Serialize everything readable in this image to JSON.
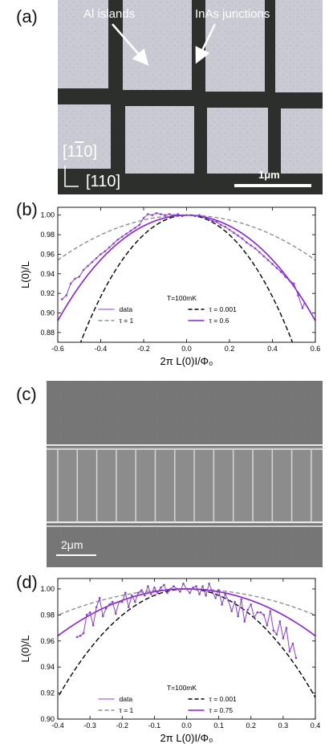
{
  "panels": {
    "a": {
      "label": "(a)",
      "annotation_left": "Al islands",
      "annotation_right": "InAs junctions",
      "axis_top": "[1̄ 1̄ 0]",
      "axis_bottom": "[110]",
      "scale_bar": "1μm",
      "colors": {
        "background": "#3e3e3e",
        "island": "#c9cad3",
        "stripe": "#2c2f2c"
      }
    },
    "b": {
      "label": "(b)"
    },
    "c": {
      "label": "(c)",
      "scale_bar": "2μm",
      "colors": {
        "background": "#6f6f6f",
        "band": "#8c8c8c",
        "line": "#e9e9e9"
      }
    },
    "d": {
      "label": "(d)"
    }
  },
  "chart_data": [
    {
      "id": "b",
      "type": "line",
      "xlabel": "2π L(0)I/Φ₀",
      "ylabel": "L(0)/L",
      "xlim": [
        -0.6,
        0.6
      ],
      "ylim": [
        0.87,
        1.008
      ],
      "xticks": [
        "-0.6",
        "-0.4",
        "-0.2",
        "0.0",
        "0.2",
        "0.4",
        "0.6"
      ],
      "yticks": [
        "0.88",
        "0.90",
        "0.92",
        "0.94",
        "0.96",
        "0.98",
        "1.00"
      ],
      "annotation": "T=100mK",
      "legend": [
        "data",
        "τ = 0.001",
        "τ = 1",
        "τ = 0.6"
      ],
      "series": [
        {
          "name": "data",
          "style": "data",
          "color": "#8b3fd1",
          "x": [
            -0.58,
            -0.56,
            -0.54,
            -0.52,
            -0.5,
            -0.48,
            -0.46,
            -0.44,
            -0.42,
            -0.4,
            -0.38,
            -0.36,
            -0.34,
            -0.32,
            -0.3,
            -0.28,
            -0.26,
            -0.24,
            -0.22,
            -0.2,
            -0.18,
            -0.16,
            -0.14,
            -0.12,
            -0.1,
            -0.08,
            -0.06,
            -0.04,
            -0.02,
            0.0,
            0.02,
            0.04,
            0.06,
            0.08,
            0.1,
            0.12,
            0.14,
            0.16,
            0.18,
            0.2,
            0.22,
            0.24,
            0.26,
            0.28,
            0.3,
            0.32,
            0.34,
            0.36,
            0.38,
            0.4,
            0.42,
            0.44,
            0.46,
            0.48,
            0.5,
            0.52,
            0.54,
            0.55
          ],
          "y": [
            0.914,
            0.918,
            0.93,
            0.935,
            0.937,
            0.944,
            0.948,
            0.952,
            0.956,
            0.96,
            0.963,
            0.967,
            0.971,
            0.975,
            0.978,
            0.981,
            0.984,
            0.987,
            0.99,
            0.997,
            1.001,
            1.0,
            1.002,
            1.001,
            1.0,
            1.001,
            1.0,
            1.001,
            0.999,
            1.0,
            1.0,
            0.999,
            1.0,
            0.998,
            0.996,
            0.994,
            0.993,
            0.99,
            0.988,
            0.985,
            0.982,
            0.979,
            0.976,
            0.972,
            0.969,
            0.966,
            0.962,
            0.958,
            0.954,
            0.95,
            0.946,
            0.942,
            0.937,
            0.933,
            0.93,
            0.918,
            0.905,
            0.91
          ]
        },
        {
          "name": "τ = 0.001",
          "style": "dash-black",
          "color": "#000000",
          "tau": 0.001
        },
        {
          "name": "τ = 1",
          "style": "dash-gray",
          "color": "#8f8f8f",
          "tau": 1
        },
        {
          "name": "τ = 0.6",
          "style": "solid",
          "color": "#8b1fd6",
          "tau": 0.6
        }
      ]
    },
    {
      "id": "d",
      "type": "line",
      "xlabel": "2π L(0)I/Φ₀",
      "ylabel": "L(0)/L",
      "xlim": [
        -0.4,
        0.4
      ],
      "ylim": [
        0.9,
        1.008
      ],
      "xticks": [
        "-0.4",
        "-0.3",
        "-0.2",
        "-0.1",
        "0.0",
        "0.1",
        "0.2",
        "0.3",
        "0.4"
      ],
      "yticks": [
        "0.90",
        "0.92",
        "0.94",
        "0.96",
        "0.98",
        "1.00"
      ],
      "annotation": "T=100mK",
      "legend": [
        "data",
        "τ = 0.001",
        "τ = 1",
        "τ = 0.75"
      ],
      "series": [
        {
          "name": "data",
          "style": "data",
          "color": "#8b3fd1",
          "x": [
            -0.34,
            -0.33,
            -0.32,
            -0.31,
            -0.3,
            -0.29,
            -0.28,
            -0.27,
            -0.26,
            -0.25,
            -0.24,
            -0.23,
            -0.22,
            -0.21,
            -0.2,
            -0.19,
            -0.18,
            -0.17,
            -0.16,
            -0.15,
            -0.14,
            -0.13,
            -0.12,
            -0.11,
            -0.1,
            -0.09,
            -0.08,
            -0.07,
            -0.06,
            -0.05,
            -0.04,
            -0.03,
            -0.02,
            -0.01,
            0.0,
            0.01,
            0.02,
            0.03,
            0.04,
            0.05,
            0.06,
            0.07,
            0.08,
            0.09,
            0.1,
            0.11,
            0.12,
            0.13,
            0.14,
            0.15,
            0.16,
            0.17,
            0.18,
            0.19,
            0.2,
            0.21,
            0.22,
            0.23,
            0.24,
            0.25,
            0.26,
            0.27,
            0.28,
            0.29,
            0.3,
            0.31,
            0.32,
            0.33,
            0.34
          ],
          "y": [
            0.963,
            0.964,
            0.966,
            0.98,
            0.982,
            0.972,
            0.986,
            0.993,
            0.979,
            0.985,
            0.988,
            0.99,
            0.981,
            0.99,
            0.99,
            0.997,
            0.986,
            0.995,
            0.99,
            0.997,
            0.999,
            0.995,
            1.002,
            0.996,
            1.001,
            0.997,
            1.001,
            1.003,
            0.997,
            1.0,
            1.002,
            1.0,
            0.998,
            1.004,
            1.0,
            0.997,
            1.001,
            1.002,
            0.996,
            1.002,
            0.995,
            1.004,
            0.998,
            0.993,
            0.999,
            0.988,
            0.996,
            0.991,
            0.983,
            0.99,
            0.979,
            0.992,
            0.975,
            0.984,
            0.988,
            0.978,
            0.982,
            0.982,
            0.98,
            0.972,
            0.983,
            0.968,
            0.965,
            0.975,
            0.962,
            0.97,
            0.952,
            0.958,
            0.947
          ]
        },
        {
          "name": "τ = 0.001",
          "style": "dash-black",
          "color": "#000000",
          "tau": 0.001
        },
        {
          "name": "τ = 1",
          "style": "dash-gray",
          "color": "#8f8f8f",
          "tau": 1
        },
        {
          "name": "τ = 0.75",
          "style": "solid",
          "color": "#8b1fd6",
          "tau": 0.75
        }
      ]
    }
  ]
}
